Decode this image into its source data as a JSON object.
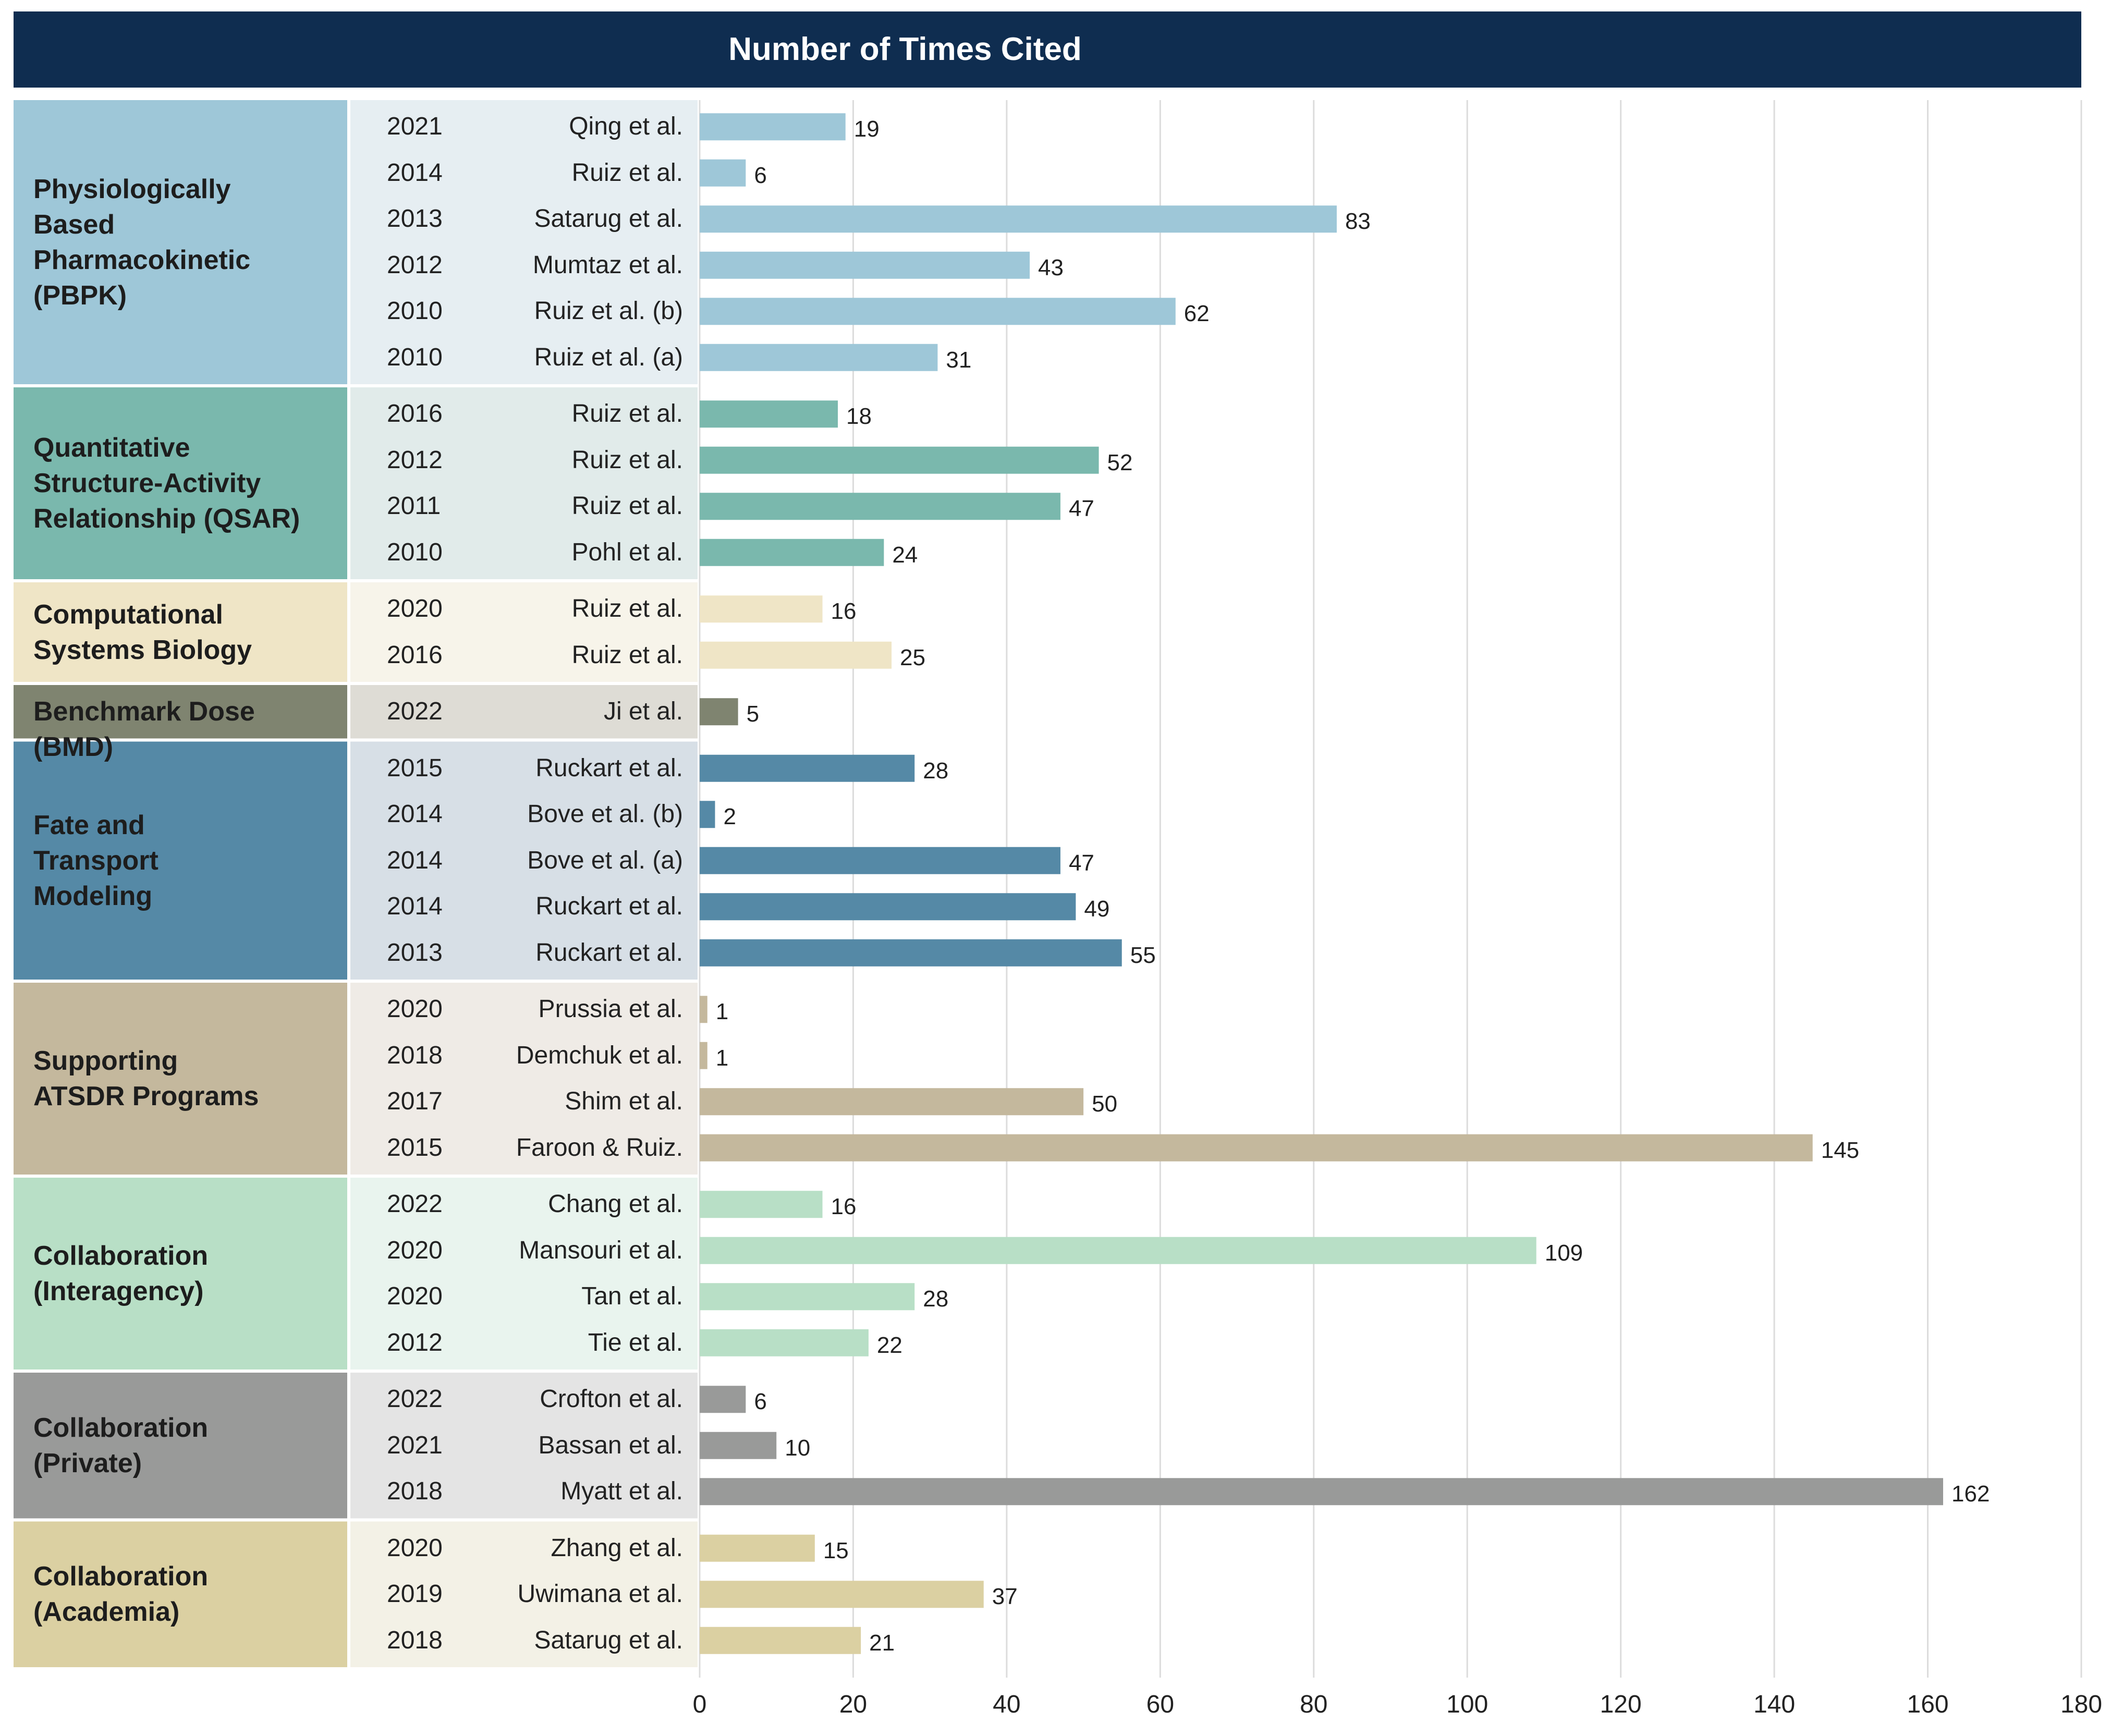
{
  "chart_data": {
    "type": "bar",
    "orientation": "horizontal",
    "title": "Number of Times Cited",
    "xlabel": "",
    "ylabel": "",
    "xlim": [
      0,
      180
    ],
    "xticks": [
      0,
      20,
      40,
      60,
      80,
      100,
      120,
      140,
      160,
      180
    ],
    "grid": true,
    "groups": [
      {
        "name": "Physiologically Based Pharmacokinetic (PBPK)",
        "label_lines": [
          "Physiologically",
          "Based",
          "Pharmacokinetic",
          "(PBPK)"
        ],
        "color": "#9ec7d8",
        "label_bg": "#9ec7d8",
        "row_bg": "#e6eef2",
        "items": [
          {
            "year": "2021",
            "author": "Qing et al.",
            "value": 19
          },
          {
            "year": "2014",
            "author": "Ruiz et al.",
            "value": 6
          },
          {
            "year": "2013",
            "author": "Satarug et al.",
            "value": 83
          },
          {
            "year": "2012",
            "author": "Mumtaz et al.",
            "value": 43
          },
          {
            "year": "2010",
            "author": "Ruiz et al. (b)",
            "value": 62
          },
          {
            "year": "2010",
            "author": "Ruiz et al. (a)",
            "value": 31
          }
        ]
      },
      {
        "name": "Quantitative Structure-Activity Relationship (QSAR)",
        "label_lines": [
          "Quantitative",
          "Structure-Activity",
          "Relationship (QSAR)"
        ],
        "color": "#7ab8ad",
        "label_bg": "#7ab8ad",
        "row_bg": "#e1ebea",
        "items": [
          {
            "year": "2016",
            "author": "Ruiz et al.",
            "value": 18
          },
          {
            "year": "2012",
            "author": "Ruiz et al.",
            "value": 52
          },
          {
            "year": "2011",
            "author": "Ruiz et al.",
            "value": 47
          },
          {
            "year": "2010",
            "author": "Pohl et al.",
            "value": 24
          }
        ]
      },
      {
        "name": "Computational Systems Biology",
        "label_lines": [
          "Computational",
          "Systems Biology"
        ],
        "color": "#efe5c6",
        "label_bg": "#efe5c6",
        "row_bg": "#f7f4ea",
        "items": [
          {
            "year": "2020",
            "author": "Ruiz et al.",
            "value": 16
          },
          {
            "year": "2016",
            "author": "Ruiz et al.",
            "value": 25
          }
        ]
      },
      {
        "name": "Benchmark Dose (BMD)",
        "label_lines": [
          "Benchmark Dose (BMD)"
        ],
        "color": "#7f8470",
        "label_bg": "#7f8470",
        "row_bg": "#dedcd5",
        "items": [
          {
            "year": "2022",
            "author": "Ji et al.",
            "value": 5
          }
        ]
      },
      {
        "name": "Fate and Transport Modeling",
        "label_lines": [
          "Fate and",
          "Transport",
          "Modeling"
        ],
        "color": "#5589a6",
        "label_bg": "#5589a6",
        "row_bg": "#d7dfe6",
        "items": [
          {
            "year": "2015",
            "author": "Ruckart et al.",
            "value": 28
          },
          {
            "year": "2014",
            "author": "Bove et al. (b)",
            "value": 2
          },
          {
            "year": "2014",
            "author": "Bove et al. (a)",
            "value": 47
          },
          {
            "year": "2014",
            "author": "Ruckart et al.",
            "value": 49
          },
          {
            "year": "2013",
            "author": "Ruckart et al.",
            "value": 55
          }
        ]
      },
      {
        "name": "Supporting ATSDR Programs",
        "label_lines": [
          "Supporting",
          "ATSDR Programs"
        ],
        "color": "#c4b89d",
        "label_bg": "#c4b89d",
        "row_bg": "#efebe6",
        "items": [
          {
            "year": "2020",
            "author": "Prussia et al.",
            "value": 1
          },
          {
            "year": "2018",
            "author": "Demchuk et al.",
            "value": 1
          },
          {
            "year": "2017",
            "author": "Shim et al.",
            "value": 50
          },
          {
            "year": "2015",
            "author": "Faroon & Ruiz.",
            "value": 145
          }
        ]
      },
      {
        "name": "Collaboration (Interagency)",
        "label_lines": [
          "Collaboration",
          "(Interagency)"
        ],
        "color": "#b8dfc6",
        "label_bg": "#b8dfc6",
        "row_bg": "#e9f4ee",
        "items": [
          {
            "year": "2022",
            "author": "Chang et al.",
            "value": 16
          },
          {
            "year": "2020",
            "author": "Mansouri et al.",
            "value": 109
          },
          {
            "year": "2020",
            "author": "Tan et al.",
            "value": 28
          },
          {
            "year": "2012",
            "author": "Tie et al.",
            "value": 22
          }
        ]
      },
      {
        "name": "Collaboration (Private)",
        "label_lines": [
          "Collaboration",
          "(Private)"
        ],
        "color": "#999a99",
        "label_bg": "#999a99",
        "row_bg": "#e4e4e4",
        "items": [
          {
            "year": "2022",
            "author": "Crofton et al.",
            "value": 6
          },
          {
            "year": "2021",
            "author": "Bassan et al.",
            "value": 10
          },
          {
            "year": "2018",
            "author": "Myatt et al.",
            "value": 162
          }
        ]
      },
      {
        "name": "Collaboration (Academia)",
        "label_lines": [
          "Collaboration",
          "(Academia)"
        ],
        "color": "#dbd0a2",
        "label_bg": "#dbd0a2",
        "row_bg": "#f3f1e6",
        "items": [
          {
            "year": "2020",
            "author": "Zhang et al.",
            "value": 15
          },
          {
            "year": "2019",
            "author": "Uwimana et al.",
            "value": 37
          },
          {
            "year": "2018",
            "author": "Satarug et al.",
            "value": 21
          }
        ]
      }
    ]
  }
}
